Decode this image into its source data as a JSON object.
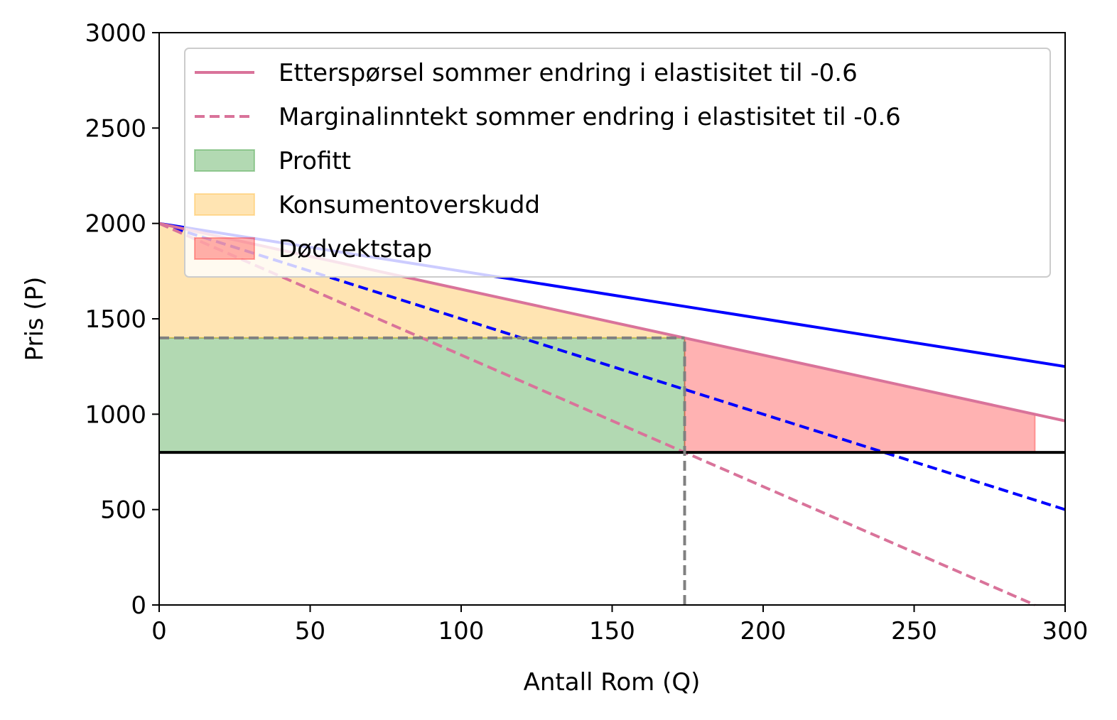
{
  "chart_data": {
    "type": "line",
    "title": "",
    "xlabel": "Antall Rom (Q)",
    "ylabel": "Pris (P)",
    "xlim": [
      0,
      300
    ],
    "ylim": [
      0,
      3000
    ],
    "xticks": [
      0,
      50,
      100,
      150,
      200,
      250,
      300
    ],
    "yticks": [
      0,
      500,
      1000,
      1500,
      2000,
      2500,
      3000
    ],
    "grid": false,
    "legend_position": "upper-right",
    "series": [
      {
        "kind": "line",
        "style": "solid",
        "color": "#0000ff",
        "x": [
          0,
          300
        ],
        "y": [
          2000,
          1250
        ]
      },
      {
        "kind": "line",
        "style": "dashed",
        "color": "#0000ff",
        "x": [
          0,
          300
        ],
        "y": [
          2000,
          500
        ]
      },
      {
        "name": "Etterspørsel sommer endring i elastisitet til -0.6",
        "kind": "line",
        "style": "solid",
        "color": "#d9739a",
        "x": [
          0,
          300
        ],
        "y": [
          2000,
          965
        ]
      },
      {
        "name": "Marginalinntekt sommer endring i elastisitet til -0.6",
        "kind": "line",
        "style": "dashed",
        "color": "#d9739a",
        "x": [
          0,
          290
        ],
        "y": [
          2000,
          0
        ]
      },
      {
        "kind": "line",
        "style": "solid",
        "color": "#000000",
        "x": [
          0,
          300
        ],
        "y": [
          800,
          800
        ]
      },
      {
        "kind": "line",
        "style": "dashed",
        "color": "#808080",
        "x": [
          0,
          174
        ],
        "y": [
          1400,
          1400
        ]
      },
      {
        "kind": "line",
        "style": "dashed",
        "color": "#808080",
        "x": [
          174,
          174
        ],
        "y": [
          0,
          1400
        ]
      }
    ],
    "areas": [
      {
        "name": "Profitt",
        "color": "#008000",
        "opacity": 0.3,
        "x": [
          0,
          174,
          174,
          0
        ],
        "y": [
          800,
          800,
          1400,
          1400
        ]
      },
      {
        "name": "Konsumentoverskudd",
        "color": "#ffa500",
        "opacity": 0.3,
        "x": [
          0,
          174,
          0
        ],
        "y": [
          2000,
          1400,
          1400
        ]
      },
      {
        "name": "Dødvektstap",
        "color": "#ff0000",
        "opacity": 0.3,
        "x": [
          174,
          290,
          290,
          174
        ],
        "y": [
          1400,
          1000,
          800,
          800
        ]
      }
    ]
  }
}
